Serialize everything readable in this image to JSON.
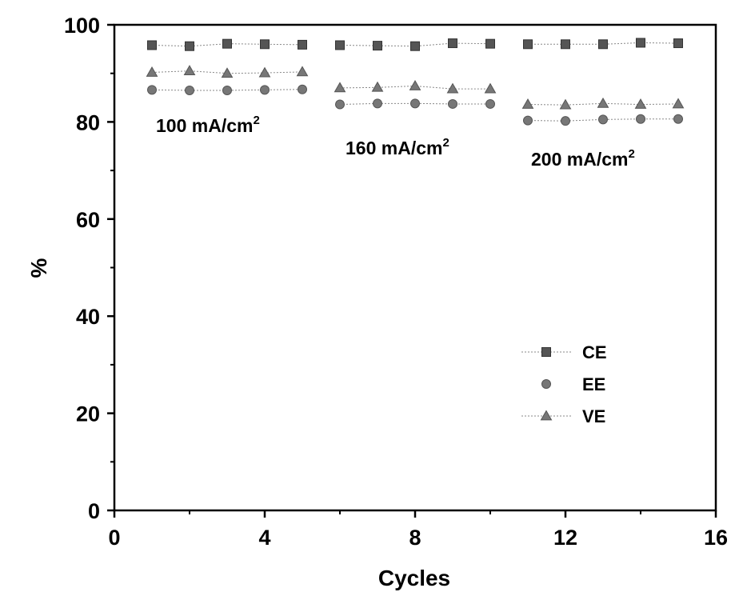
{
  "chart_data": {
    "type": "scatter",
    "xlabel": "Cycles",
    "ylabel": "%",
    "xlim": [
      0,
      16
    ],
    "ylim": [
      0,
      100
    ],
    "xticks": [
      "0",
      "4",
      "8",
      "12",
      "16"
    ],
    "yticks": [
      "0",
      "20",
      "40",
      "60",
      "80",
      "100"
    ],
    "x": [
      1,
      2,
      3,
      4,
      5,
      6,
      7,
      8,
      9,
      10,
      11,
      12,
      13,
      14,
      15
    ],
    "groups": [
      [
        1,
        5
      ],
      [
        6,
        10
      ],
      [
        11,
        15
      ]
    ],
    "series": [
      {
        "name": "CE",
        "marker": "square",
        "color": "#555555",
        "values": [
          95.8,
          95.6,
          96.1,
          96.0,
          95.9,
          95.8,
          95.7,
          95.6,
          96.2,
          96.1,
          96.0,
          96.0,
          96.0,
          96.3,
          96.2
        ]
      },
      {
        "name": "EE",
        "marker": "circle",
        "color": "#777777",
        "values": [
          86.6,
          86.5,
          86.5,
          86.6,
          86.7,
          83.6,
          83.8,
          83.8,
          83.7,
          83.7,
          80.3,
          80.2,
          80.5,
          80.6,
          80.6
        ]
      },
      {
        "name": "VE",
        "marker": "triangle",
        "color": "#777777",
        "values": [
          90.2,
          90.5,
          90.0,
          90.1,
          90.3,
          87.0,
          87.1,
          87.4,
          86.8,
          86.8,
          83.6,
          83.5,
          83.8,
          83.6,
          83.7
        ]
      }
    ],
    "annotations": [
      {
        "id": "a100",
        "text": "100 mA/cm",
        "sup": "2"
      },
      {
        "id": "a160",
        "text": "160 mA/cm",
        "sup": "2"
      },
      {
        "id": "a200",
        "text": "200 mA/cm",
        "sup": "2"
      }
    ],
    "legend": {
      "placement": "bottom-right",
      "entries": [
        "CE",
        "EE",
        "VE"
      ]
    }
  }
}
